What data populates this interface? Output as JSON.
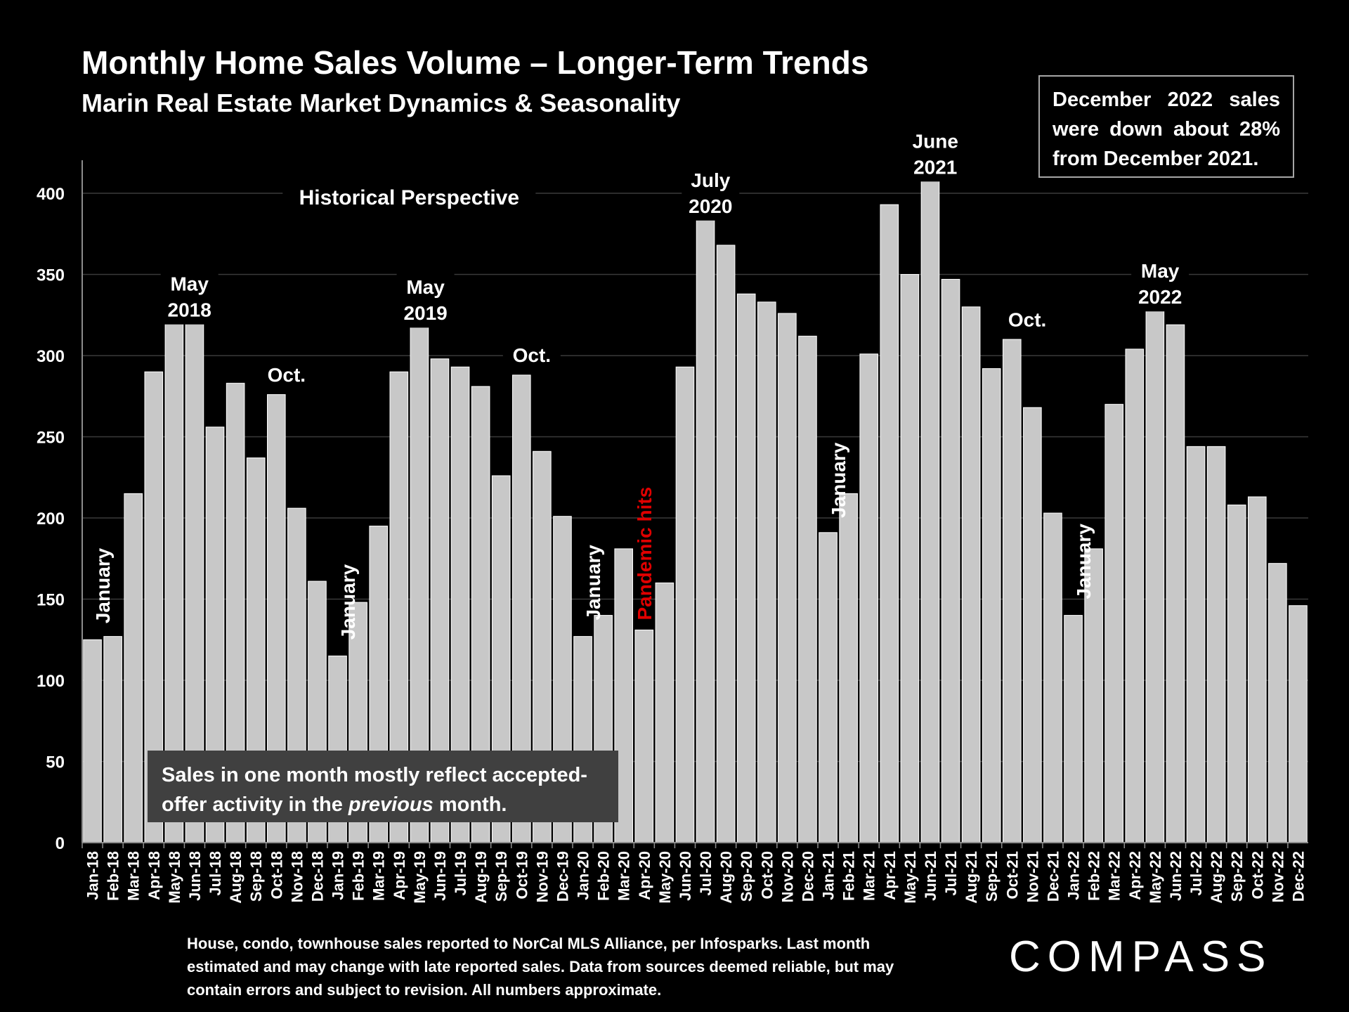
{
  "header": {
    "title": "Monthly Home Sales Volume – Longer-Term Trends",
    "subtitle": "Marin Real Estate Market Dynamics & Seasonality"
  },
  "callout": "December 2022 sales were down about 28% from December 2021.",
  "note": {
    "part1": "Sales in one month mostly reflect accepted-offer activity in the ",
    "emphasis": "previous",
    "part2": " month."
  },
  "footnote": "House, condo, townhouse sales reported to NorCal MLS Alliance, per Infosparks. Last month estimated and may change with late reported sales. Data from sources deemed reliable, but may contain errors and subject to revision. All numbers approximate.",
  "logo": "COMPASS",
  "colors": {
    "bar": "#c8c8c8",
    "background": "#000000",
    "pandemic": "#e00000",
    "grid": "#3a3a3a"
  },
  "chart_data": {
    "type": "bar",
    "title": "Monthly Home Sales Volume – Longer-Term Trends",
    "xlabel": "",
    "ylabel": "",
    "ylim": [
      0,
      420
    ],
    "yticks": [
      0,
      50,
      100,
      150,
      200,
      250,
      300,
      350,
      400
    ],
    "grid": true,
    "categories": [
      "Jan-18",
      "Feb-18",
      "Mar-18",
      "Apr-18",
      "May-18",
      "Jun-18",
      "Jul-18",
      "Aug-18",
      "Sep-18",
      "Oct-18",
      "Nov-18",
      "Dec-18",
      "Jan-19",
      "Feb-19",
      "Mar-19",
      "Apr-19",
      "May-19",
      "Jun-19",
      "Jul-19",
      "Aug-19",
      "Sep-19",
      "Oct-19",
      "Nov-19",
      "Dec-19",
      "Jan-20",
      "Feb-20",
      "Mar-20",
      "Apr-20",
      "May-20",
      "Jun-20",
      "Jul-20",
      "Aug-20",
      "Sep-20",
      "Oct-20",
      "Nov-20",
      "Dec-20",
      "Jan-21",
      "Feb-21",
      "Mar-21",
      "Apr-21",
      "May-21",
      "Jun-21",
      "Jul-21",
      "Aug-21",
      "Sep-21",
      "Oct-21",
      "Nov-21",
      "Dec-21",
      "Jan-22",
      "Feb-22",
      "Mar-22",
      "Apr-22",
      "May-22",
      "Jun-22",
      "Jul-22",
      "Aug-22",
      "Sep-22",
      "Oct-22",
      "Nov-22",
      "Dec-22"
    ],
    "values": [
      125,
      127,
      215,
      290,
      328,
      320,
      256,
      283,
      237,
      276,
      206,
      161,
      115,
      148,
      195,
      290,
      326,
      298,
      293,
      281,
      226,
      288,
      241,
      201,
      127,
      140,
      181,
      131,
      160,
      293,
      394,
      368,
      338,
      333,
      326,
      312,
      191,
      215,
      301,
      393,
      350,
      418,
      347,
      330,
      292,
      310,
      268,
      203,
      140,
      181,
      270,
      304,
      337,
      319,
      244,
      244,
      208,
      213,
      172,
      146
    ],
    "annotations": [
      {
        "text": "Historical Perspective",
        "index": 15.5,
        "value": 393,
        "style": "horizontal"
      },
      {
        "text": "May\n2018",
        "index": 4.75,
        "value": 340,
        "style": "horizontal"
      },
      {
        "text": "Oct.",
        "index": 9.5,
        "value": 284,
        "style": "horizontal"
      },
      {
        "text": "May\n2019",
        "index": 16.3,
        "value": 338,
        "style": "horizontal"
      },
      {
        "text": "Oct.",
        "index": 21.5,
        "value": 296,
        "style": "horizontal"
      },
      {
        "text": "July\n2020",
        "index": 30.25,
        "value": 404,
        "style": "horizontal"
      },
      {
        "text": "June\n2021",
        "index": 41.25,
        "value": 428,
        "style": "horizontal"
      },
      {
        "text": "Oct.",
        "index": 45.75,
        "value": 318,
        "style": "horizontal"
      },
      {
        "text": "May\n2022",
        "index": 52.25,
        "value": 348,
        "style": "horizontal"
      },
      {
        "text": "January",
        "index": 0.5,
        "value": 135,
        "style": "vertical"
      },
      {
        "text": "January",
        "index": 12.5,
        "value": 125,
        "style": "vertical"
      },
      {
        "text": "January",
        "index": 24.5,
        "value": 137,
        "style": "vertical"
      },
      {
        "text": "Pandemic hits",
        "index": 27.0,
        "value": 137,
        "style": "vertical-red"
      },
      {
        "text": "January",
        "index": 36.5,
        "value": 200,
        "style": "vertical"
      },
      {
        "text": "January",
        "index": 48.5,
        "value": 150,
        "style": "vertical"
      }
    ]
  }
}
